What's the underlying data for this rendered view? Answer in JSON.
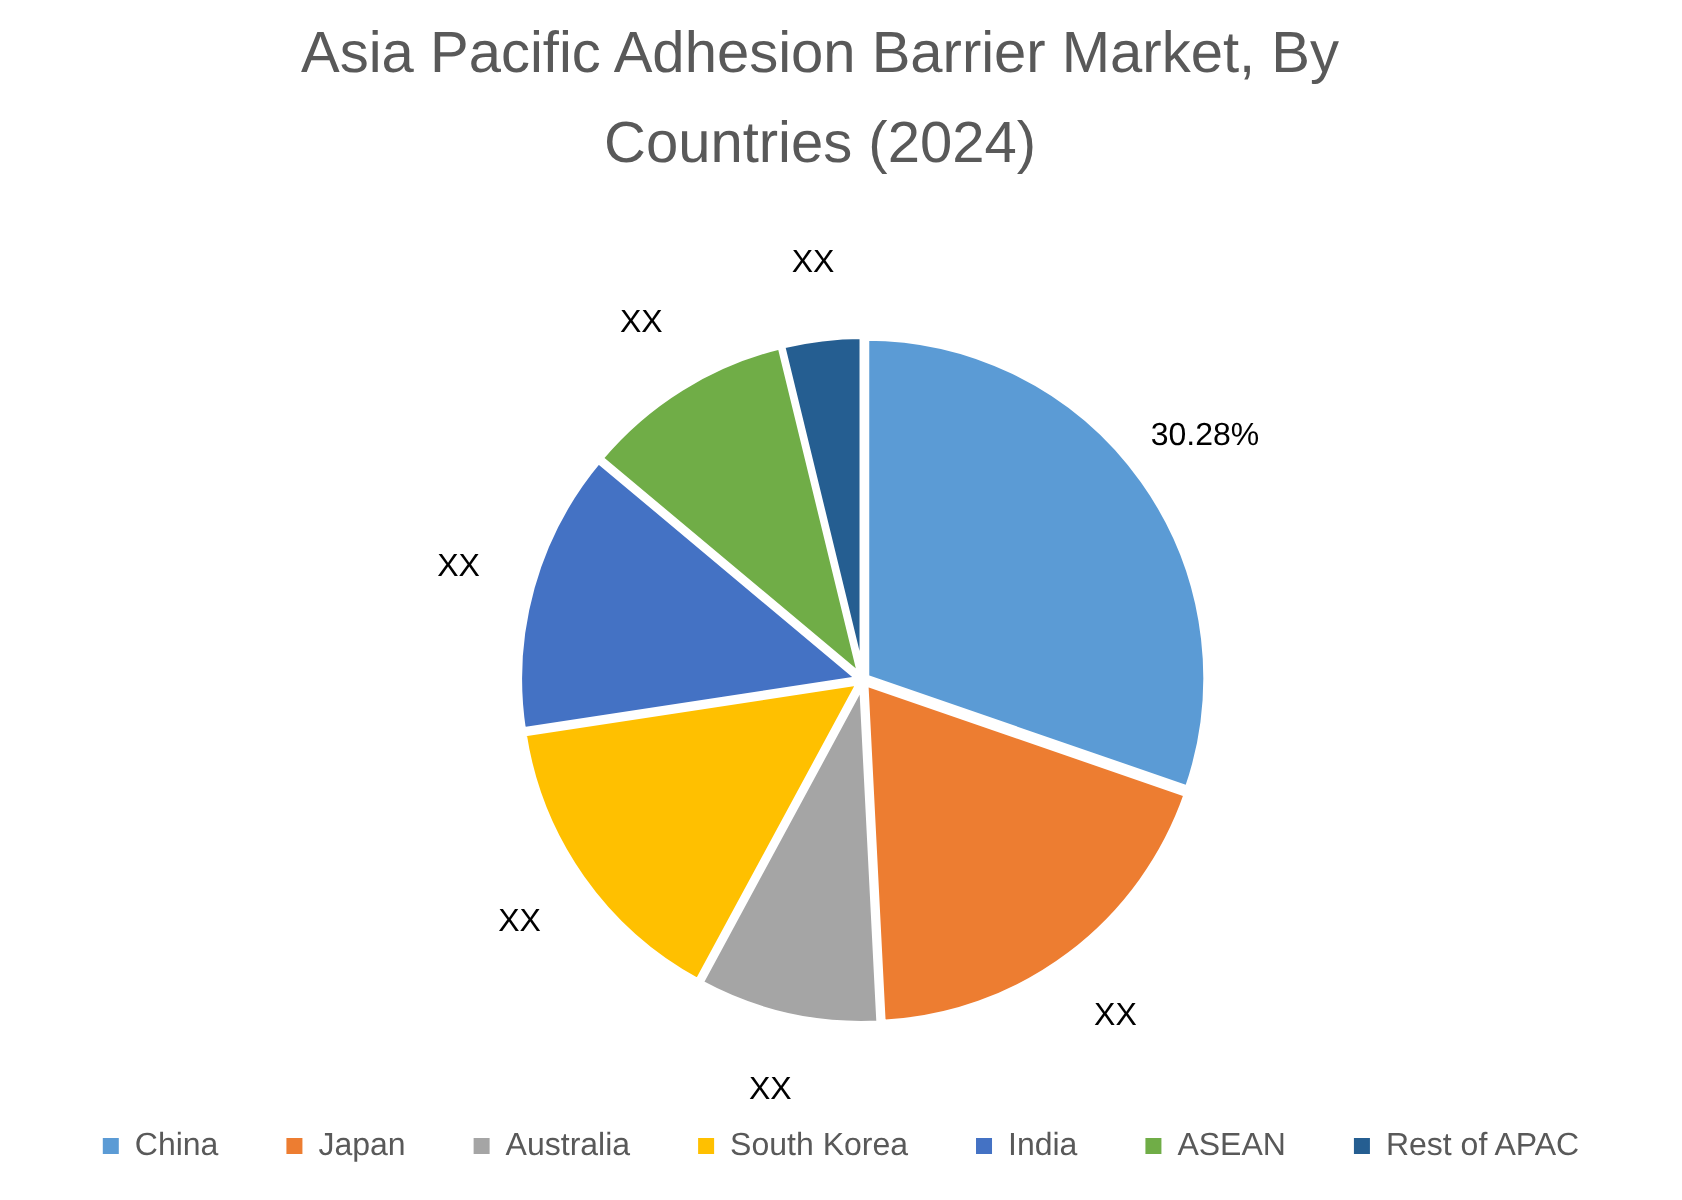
{
  "chart_data": {
    "type": "pie",
    "title": "Asia Pacific Adhesion Barrier Market, By Countries (2024)",
    "categories": [
      "China",
      "Japan",
      "Australia",
      "South Korea",
      "India",
      "ASEAN",
      "Rest of APAC"
    ],
    "values": [
      30.28,
      18.9,
      8.7,
      14.7,
      13.5,
      10.1,
      3.8
    ],
    "colors": [
      "#5b9bd5",
      "#ed7d31",
      "#a5a5a5",
      "#ffc000",
      "#4472c4",
      "#70ad47",
      "#255e91"
    ],
    "value_labels": [
      "30.28%",
      "XX",
      "XX",
      "XX",
      "XX",
      "XX",
      "XX"
    ],
    "legend": "bottom"
  }
}
